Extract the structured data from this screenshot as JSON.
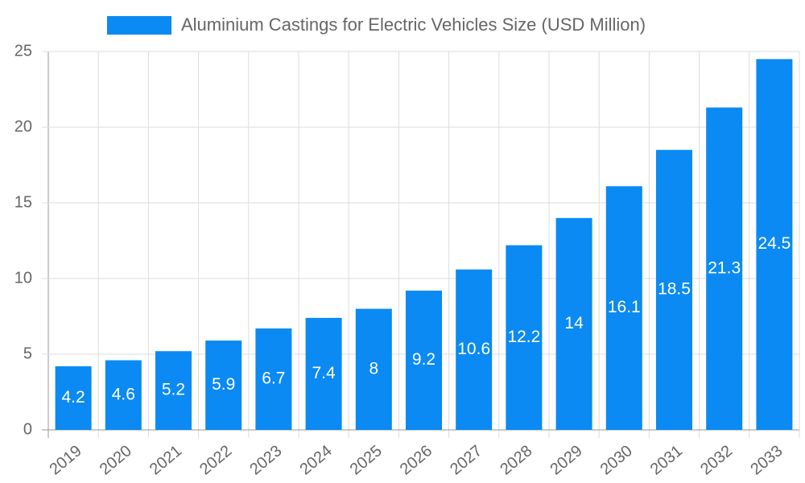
{
  "chart_data": {
    "type": "bar",
    "categories": [
      "2019",
      "2020",
      "2021",
      "2022",
      "2023",
      "2024",
      "2025",
      "2026",
      "2027",
      "2028",
      "2029",
      "2030",
      "2031",
      "2032",
      "2033"
    ],
    "series": [
      {
        "name": "Aluminium Castings for Electric Vehicles Size (USD Million)",
        "color": "#0a8af2",
        "values": [
          4.2,
          4.6,
          5.2,
          5.9,
          6.7,
          7.4,
          8,
          9.2,
          10.6,
          12.2,
          14,
          16.1,
          18.5,
          21.3,
          24.5
        ]
      }
    ],
    "ylim": [
      0,
      25
    ],
    "yticks": [
      0,
      5,
      10,
      15,
      20,
      25
    ],
    "grid": true,
    "legend": "top"
  }
}
